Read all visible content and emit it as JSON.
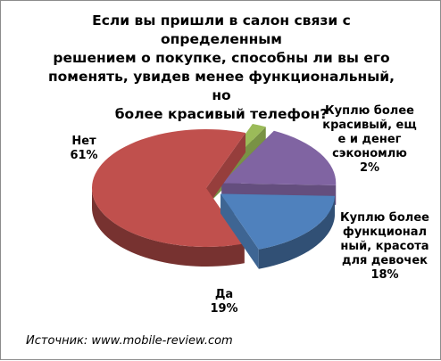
{
  "chart_data": {
    "type": "pie",
    "title_lines": [
      "Если вы пришли в салон связи с определенным",
      "решением о покупке, способны ли вы его",
      "поменять, увидев менее функциональный, но",
      "более красивый телефон?"
    ],
    "slices": [
      {
        "key": "green",
        "label_lines": [
          "Куплю более",
          "красивый, ещ",
          "е и денег",
          "сэкономлю"
        ],
        "percent_label": "2%",
        "value": 2,
        "color": "#9bbb59",
        "exploded": true
      },
      {
        "key": "purple",
        "label_lines": [
          "Куплю более",
          "функционал",
          "ный, красота",
          "для девочек"
        ],
        "percent_label": "18%",
        "value": 18,
        "color": "#8064a2",
        "exploded": true
      },
      {
        "key": "blue",
        "label_lines": [
          "Да"
        ],
        "percent_label": "19%",
        "value": 19,
        "color": "#4f81bd",
        "exploded": true
      },
      {
        "key": "red",
        "label_lines": [
          "Нет"
        ],
        "percent_label": "61%",
        "value": 61,
        "color": "#c0504d",
        "exploded": false
      }
    ],
    "source": "Источник: www.mobile-review.com"
  }
}
